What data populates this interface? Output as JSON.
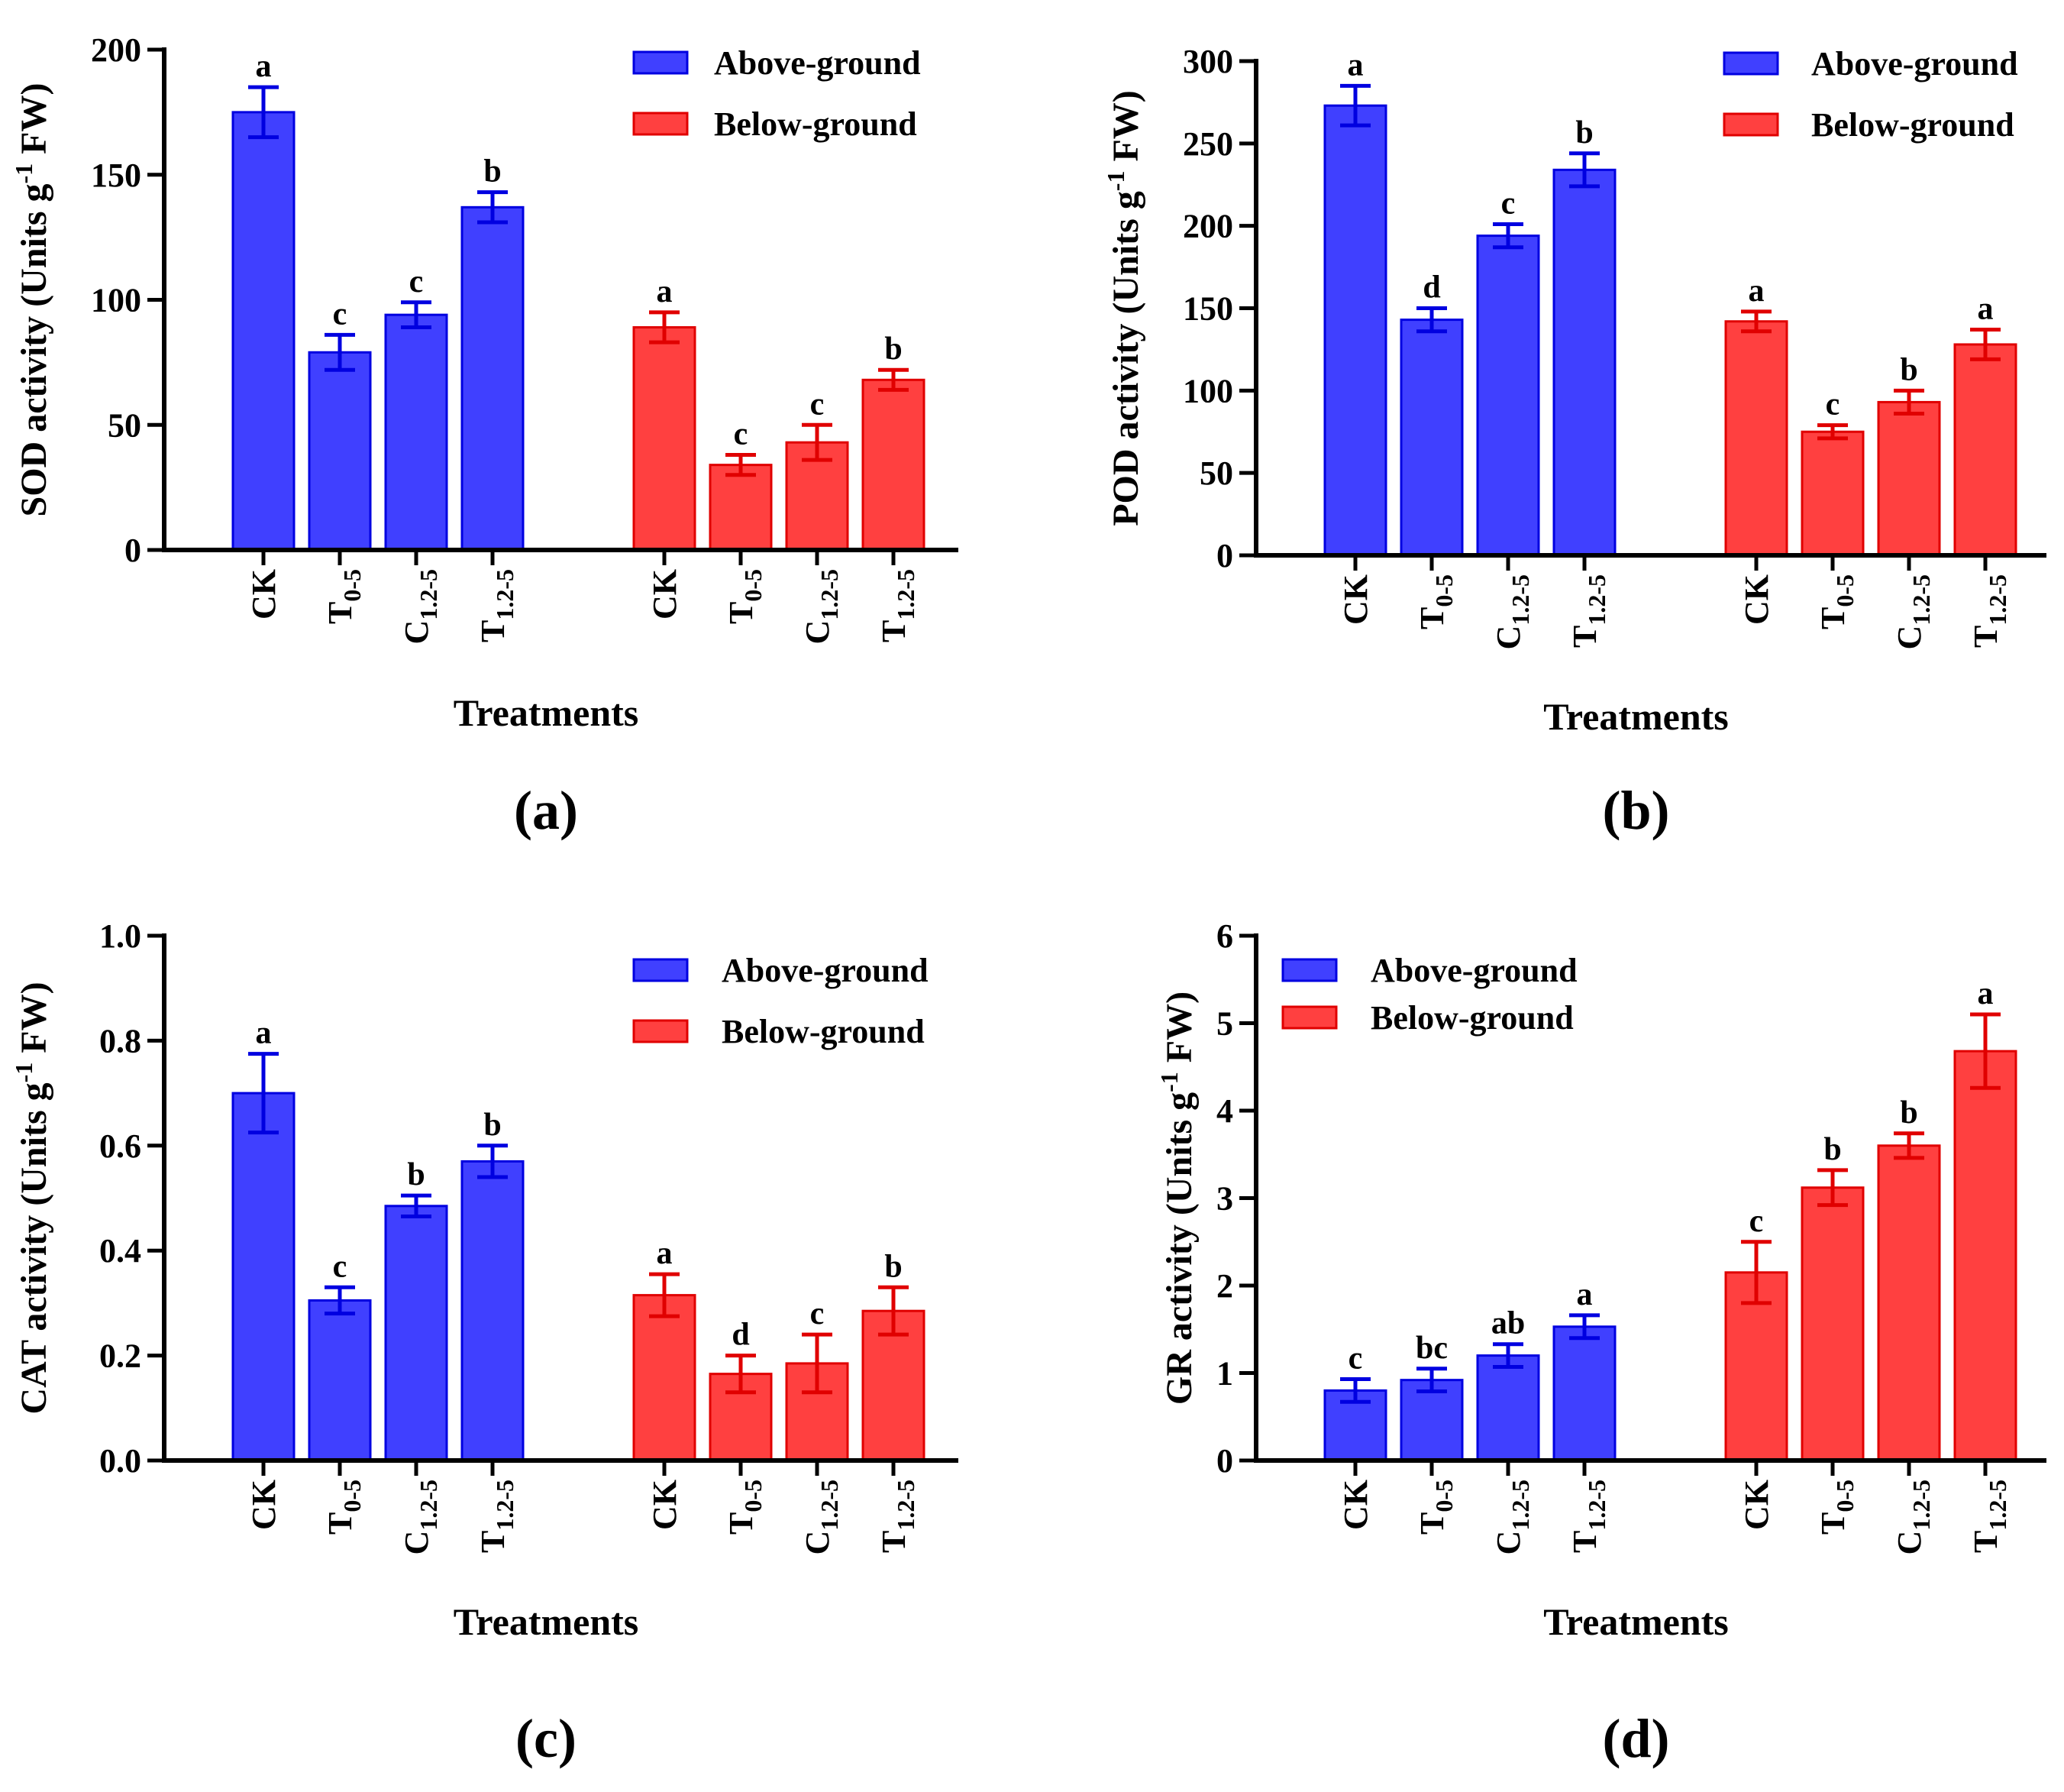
{
  "colors": {
    "above_fill": "#4040ff",
    "above_edge": "#0000e0",
    "below_fill": "#ff4040",
    "below_edge": "#e00000"
  },
  "chart_data": [
    {
      "type": "bar",
      "panel": "(a)",
      "ylabel_main": "SOD activity (Units g",
      "ylabel_sup": "-1",
      "ylabel_end": " FW)",
      "xlabel": "Treatments",
      "ylim": [
        0,
        200
      ],
      "yticks": [
        0,
        50,
        100,
        150,
        200
      ],
      "ytick_labels": [
        "0",
        "50",
        "100",
        "150",
        "200"
      ],
      "legend": [
        "Above-ground",
        "Below-ground"
      ],
      "legend_position": "top-right",
      "categories": [
        {
          "main": "CK",
          "sub": ""
        },
        {
          "main": "T",
          "sub": "0-5"
        },
        {
          "main": "C",
          "sub": "1.2-5"
        },
        {
          "main": "T",
          "sub": "1.2-5"
        }
      ],
      "series": [
        {
          "name": "Above-ground",
          "values": [
            175,
            79,
            94,
            137
          ],
          "errors": [
            10,
            7,
            5,
            6
          ],
          "letters": [
            "a",
            "c",
            "c",
            "b"
          ]
        },
        {
          "name": "Below-ground",
          "values": [
            89,
            34,
            43,
            68
          ],
          "errors": [
            6,
            4,
            7,
            4
          ],
          "letters": [
            "a",
            "c",
            "c",
            "b"
          ]
        }
      ]
    },
    {
      "type": "bar",
      "panel": "(b)",
      "ylabel_main": "POD activity (Units g",
      "ylabel_sup": "-1",
      "ylabel_end": " FW)",
      "xlabel": "Treatments",
      "ylim": [
        0,
        300
      ],
      "yticks": [
        0,
        50,
        100,
        150,
        200,
        250,
        300
      ],
      "ytick_labels": [
        "0",
        "50",
        "100",
        "150",
        "200",
        "250",
        "300"
      ],
      "legend": [
        "Above-ground",
        "Below-ground"
      ],
      "legend_position": "top-right",
      "categories": [
        {
          "main": "CK",
          "sub": ""
        },
        {
          "main": "T",
          "sub": "0-5"
        },
        {
          "main": "C",
          "sub": "1.2-5"
        },
        {
          "main": "T",
          "sub": "1.2-5"
        }
      ],
      "series": [
        {
          "name": "Above-ground",
          "values": [
            273,
            143,
            194,
            234
          ],
          "errors": [
            12,
            7,
            7,
            10
          ],
          "letters": [
            "a",
            "d",
            "c",
            "b"
          ]
        },
        {
          "name": "Below-ground",
          "values": [
            142,
            75,
            93,
            128
          ],
          "errors": [
            6,
            4,
            7,
            9
          ],
          "letters": [
            "a",
            "c",
            "b",
            "a"
          ]
        }
      ]
    },
    {
      "type": "bar",
      "panel": "(c)",
      "ylabel_main": "CAT activity (Units g",
      "ylabel_sup": "-1",
      "ylabel_end": " FW)",
      "xlabel": "Treatments",
      "ylim": [
        0,
        1.0
      ],
      "yticks": [
        0,
        0.2,
        0.4,
        0.6,
        0.8,
        1.0
      ],
      "ytick_labels": [
        "0.0",
        "0.2",
        "0.4",
        "0.6",
        "0.8",
        "1.0"
      ],
      "legend": [
        "Above-ground",
        "Below-ground"
      ],
      "legend_position": "top-right",
      "categories": [
        {
          "main": "CK",
          "sub": ""
        },
        {
          "main": "T",
          "sub": "0-5"
        },
        {
          "main": "C",
          "sub": "1.2-5"
        },
        {
          "main": "T",
          "sub": "1.2-5"
        }
      ],
      "series": [
        {
          "name": "Above-ground",
          "values": [
            0.7,
            0.305,
            0.485,
            0.57
          ],
          "errors": [
            0.075,
            0.025,
            0.02,
            0.03
          ],
          "letters": [
            "a",
            "c",
            "b",
            "b"
          ]
        },
        {
          "name": "Below-ground",
          "values": [
            0.315,
            0.165,
            0.185,
            0.285
          ],
          "errors": [
            0.04,
            0.035,
            0.055,
            0.045
          ],
          "letters": [
            "a",
            "d",
            "c",
            "b"
          ]
        }
      ]
    },
    {
      "type": "bar",
      "panel": "(d)",
      "ylabel_main": "GR activity (Units g",
      "ylabel_sup": "-1",
      "ylabel_end": " FW)",
      "xlabel": "Treatments",
      "ylim": [
        0,
        6
      ],
      "yticks": [
        0,
        1,
        2,
        3,
        4,
        5,
        6
      ],
      "ytick_labels": [
        "0",
        "1",
        "2",
        "3",
        "4",
        "5",
        "6"
      ],
      "legend": [
        "Above-ground",
        "Below-ground"
      ],
      "legend_position": "top-left",
      "categories": [
        {
          "main": "CK",
          "sub": ""
        },
        {
          "main": "T",
          "sub": "0-5"
        },
        {
          "main": "C",
          "sub": "1.2-5"
        },
        {
          "main": "T",
          "sub": "1.2-5"
        }
      ],
      "series": [
        {
          "name": "Above-ground",
          "values": [
            0.8,
            0.92,
            1.2,
            1.53
          ],
          "errors": [
            0.13,
            0.13,
            0.13,
            0.13
          ],
          "letters": [
            "c",
            "bc",
            "ab",
            "a"
          ]
        },
        {
          "name": "Below-ground",
          "values": [
            2.15,
            3.12,
            3.6,
            4.68
          ],
          "errors": [
            0.35,
            0.2,
            0.14,
            0.42
          ],
          "letters": [
            "c",
            "b",
            "b",
            "a"
          ]
        }
      ]
    }
  ]
}
